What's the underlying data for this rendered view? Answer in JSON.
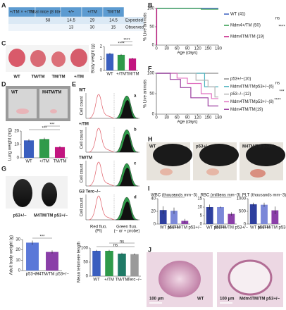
{
  "panel_labels": [
    "A",
    "B",
    "C",
    "D",
    "E",
    "F",
    "G",
    "H",
    "I",
    "J"
  ],
  "table": {
    "header": [
      "+/TM × +/TM",
      "Total mice (8 litters)",
      "+/+",
      "+/TM",
      "TM/TM"
    ],
    "rows": [
      {
        "total": "58",
        "values": [
          "14.5",
          "29",
          "14.5"
        ],
        "label": "Expected"
      },
      {
        "values": [
          "13",
          "30",
          "15"
        ],
        "label": "Observed"
      }
    ]
  },
  "chart_data": [
    {
      "type": "line",
      "y_label": "% Live animals",
      "x_label": "Age (days)",
      "xlim": [
        0,
        180
      ],
      "xticks": [
        0,
        30,
        60,
        90,
        120,
        150,
        180
      ],
      "ylim": [
        0,
        100
      ],
      "yticks": [
        0,
        50,
        100
      ],
      "series": [
        {
          "name": "WT (41)",
          "color": "#3a5fbf",
          "x": [
            0,
            180
          ],
          "values": [
            100,
            100
          ]
        },
        {
          "name": "Mdm4+/TM (50)",
          "color": "#2f9a4a",
          "x": [
            0,
            130,
            130,
            180
          ],
          "values": [
            100,
            100,
            98,
            98
          ]
        },
        {
          "name": "Mdm4TM/TM (19)",
          "color": "#c2157f",
          "x": [
            0,
            1,
            1
          ],
          "values": [
            100,
            100,
            0
          ]
        }
      ],
      "annotations": [
        "ns",
        "****"
      ]
    },
    {
      "type": "bar",
      "y_label": "Body weight (g)",
      "categories": [
        "WT",
        "+/TM",
        "TM/TM"
      ],
      "values": [
        1.4,
        1.3,
        1.0
      ],
      "errors": [
        0.08,
        0.07,
        0.06
      ],
      "colors": [
        "#3a5fbf",
        "#2f9a4a",
        "#c2157f"
      ],
      "ylim": [
        0,
        2
      ],
      "yticks": [
        0,
        1,
        2
      ],
      "annotations": [
        "****",
        "****"
      ]
    },
    {
      "type": "bar",
      "y_label": "Lung weight (mg)",
      "categories": [
        "WT",
        "+/TM",
        "TM/TM"
      ],
      "values": [
        13,
        14,
        8
      ],
      "errors": [
        1,
        1,
        0.8
      ],
      "colors": [
        "#3a5fbf",
        "#2f9a4a",
        "#c2157f"
      ],
      "ylim": [
        0,
        20
      ],
      "yticks": [
        0,
        10,
        20
      ],
      "annotations": [
        "***",
        "***"
      ]
    },
    {
      "type": "bar",
      "y_label": "Mean telomere length",
      "categories": [
        "WT",
        "+/TM",
        "TM/TM",
        "Terc−/−"
      ],
      "values": [
        90,
        90,
        80,
        78
      ],
      "errors": [
        3,
        3,
        3,
        3
      ],
      "colors": [
        "#3a5fbf",
        "#2f9a4a",
        "#1f7a66",
        "#9a9a9a"
      ],
      "ylim": [
        0,
        100
      ],
      "yticks": [
        0,
        50,
        100
      ],
      "annotations": [
        "ns",
        "ns"
      ]
    },
    {
      "type": "line",
      "y_label": "% Live animals",
      "x_label": "Age (days)",
      "xlim": [
        0,
        180
      ],
      "xticks": [
        0,
        30,
        60,
        90,
        120,
        150,
        180
      ],
      "ylim": [
        0,
        100
      ],
      "yticks": [
        0,
        50,
        100
      ],
      "series": [
        {
          "name": "p53+/−(10)",
          "color": "#8c8c8c",
          "x": [
            0,
            180
          ],
          "values": [
            100,
            100
          ]
        },
        {
          "name": "Mdm4TM/TMp53+/−(6)",
          "color": "#4fb3bf",
          "x": [
            0,
            140,
            140,
            180
          ],
          "values": [
            100,
            100,
            67,
            67
          ]
        },
        {
          "name": "p53−/−(12)",
          "color": "#b5b5b5",
          "x": [
            0,
            115,
            115,
            150,
            150,
            170,
            170,
            180
          ],
          "values": [
            100,
            100,
            83,
            83,
            67,
            67,
            42,
            42
          ]
        },
        {
          "name": "Mdm4TM/TMp53+/−(8)",
          "color": "#e070c0",
          "x": [
            0,
            60,
            60,
            90,
            90,
            130,
            130,
            160,
            160,
            180
          ],
          "values": [
            100,
            100,
            88,
            88,
            75,
            75,
            50,
            50,
            38,
            38
          ]
        },
        {
          "name": "Mdm4TM/TM(19)",
          "color": "#9b3fa0",
          "x": [
            0,
            40,
            40,
            70,
            70,
            100,
            100,
            150,
            150,
            180
          ],
          "values": [
            100,
            100,
            85,
            85,
            65,
            65,
            40,
            40,
            20,
            20
          ]
        }
      ],
      "annotations": [
        "ns",
        "***",
        "****"
      ]
    },
    {
      "type": "bar",
      "y_label": "Adult body weight (g)",
      "categories": [
        "p53+/−",
        "M4TM/TM p53+/−"
      ],
      "values": [
        27,
        18
      ],
      "errors": [
        2,
        1.5
      ],
      "colors": [
        "#5a78d8",
        "#8a3fa8"
      ],
      "ylim": [
        0,
        30
      ],
      "yticks": [
        0,
        10,
        20,
        30
      ],
      "annotations": [
        "***"
      ]
    },
    {
      "type": "bar",
      "title": "WBC (thousands mm−3)",
      "categories": [
        "WT",
        "p53+/−",
        "M4TM/TM p53+/−"
      ],
      "values": [
        22,
        21,
        5
      ],
      "errors": [
        6,
        5,
        3
      ],
      "colors": [
        "#2e3f9e",
        "#7b88d8",
        "#8a3fa8"
      ],
      "ylim": [
        0,
        40
      ],
      "yticks": [
        0,
        20,
        40
      ],
      "annotations": [
        "*"
      ]
    },
    {
      "type": "bar",
      "title": "RBC (millions mm−3)",
      "categories": [
        "WT",
        "p53+/−",
        "M4TM/TM p53+/−"
      ],
      "values": [
        10,
        10,
        6
      ],
      "errors": [
        1.5,
        0.5,
        1
      ],
      "colors": [
        "#2e3f9e",
        "#7b88d8",
        "#8a3fa8"
      ],
      "ylim": [
        0,
        15
      ],
      "yticks": [
        0,
        5,
        10,
        15
      ],
      "annotations": [
        "*"
      ]
    },
    {
      "type": "bar",
      "title": "PLT (thousands mm−3)",
      "categories": [
        "WT",
        "p53+/−",
        "M4TM/TM p53+/−"
      ],
      "values": [
        780,
        760,
        540
      ],
      "errors": [
        60,
        80,
        150
      ],
      "colors": [
        "#2e3f9e",
        "#7b88d8",
        "#8a3fa8"
      ],
      "ylim": [
        0,
        1000
      ],
      "yticks": [
        0,
        500,
        1000
      ]
    }
  ],
  "photo_labels": {
    "C": [
      "WT",
      "TM/TM",
      "TM/TM",
      "+/TM"
    ],
    "D": [
      "WT",
      "M4TM/TM"
    ],
    "G": [
      "p53+/−",
      "M4TM/TM p53+/−"
    ],
    "H": [
      "WT",
      "p53+/−",
      "M4TM/TM p53+/−"
    ],
    "J": [
      "100 µm",
      "WT",
      "100 µm",
      "Mdm4TM/TM p53+/−"
    ]
  },
  "cytometry": {
    "y_label": "Cell count",
    "rows": [
      "WT",
      "+/TM",
      "TM/TM",
      "G3 Terc−/−"
    ],
    "peaks": [
      "a",
      "b",
      "c",
      "d"
    ],
    "x_labels": [
      "Red fluo.",
      "(PI)",
      "Green fluo.",
      "(− or + probe)"
    ]
  }
}
